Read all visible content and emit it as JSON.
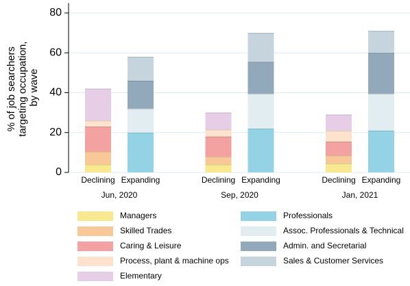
{
  "chart_data": {
    "type": "stacked_bar",
    "ylabel_lines": [
      "% of job searchers",
      "targeting occupation,",
      "by wave"
    ],
    "categories": [
      "Declining",
      "Expanding",
      "Declining",
      "Expanding",
      "Declining",
      "Expanding"
    ],
    "groups": [
      "Jun, 2020",
      "Sep, 2020",
      "Jan, 2021"
    ],
    "ylim": [
      0,
      85
    ],
    "yticks": [
      0,
      20,
      40,
      60,
      80
    ],
    "grid": true,
    "series": [
      {
        "name": "Managers",
        "color": "#f8e88f",
        "values": [
          4,
          null,
          4,
          null,
          4.5,
          null
        ]
      },
      {
        "name": "Skilled Trades",
        "color": "#f8c899",
        "values": [
          6.5,
          null,
          4,
          null,
          4,
          null
        ]
      },
      {
        "name": "Caring & Leisure",
        "color": "#f4a1a1",
        "values": [
          12.5,
          null,
          10,
          null,
          7,
          null
        ]
      },
      {
        "name": "Process, plant & machine ops",
        "color": "#fde3cd",
        "values": [
          3,
          null,
          3.5,
          null,
          5.5,
          null
        ]
      },
      {
        "name": "Elementary",
        "color": "#e6cfe6",
        "values": [
          16,
          null,
          8.5,
          null,
          8,
          null
        ]
      },
      {
        "name": "Professionals",
        "color": "#94d3e6",
        "values": [
          null,
          20,
          null,
          22,
          null,
          21
        ]
      },
      {
        "name": "Assoc. Professionals & Technical",
        "color": "#e2edf2",
        "values": [
          null,
          12,
          null,
          17.5,
          null,
          18.5
        ]
      },
      {
        "name": "Admin. and Secretarial",
        "color": "#91a9ba",
        "values": [
          null,
          14,
          null,
          16,
          null,
          20.5
        ]
      },
      {
        "name": "Sales & Customer Services",
        "color": "#c5d4dd",
        "values": [
          null,
          12,
          null,
          14.5,
          null,
          11
        ]
      }
    ]
  }
}
